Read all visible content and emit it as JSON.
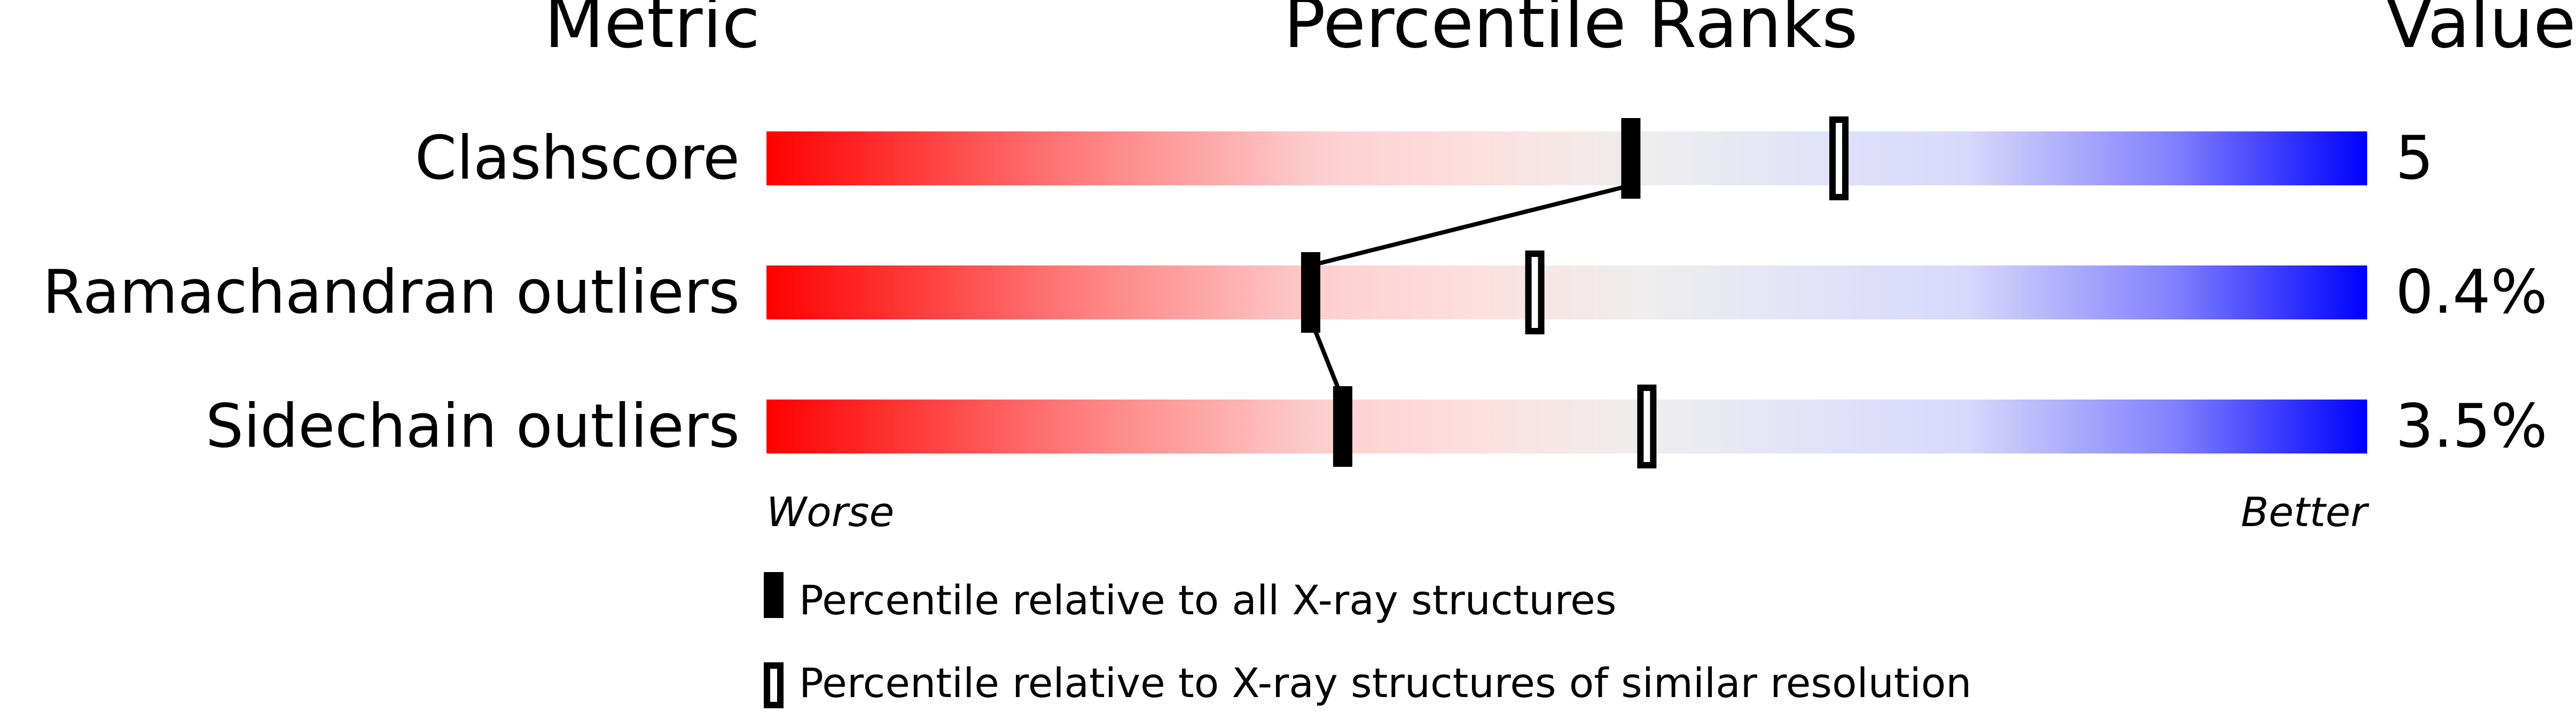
{
  "chart_data": {
    "type": "bar",
    "headers": {
      "metric": "Metric",
      "ranks": "Percentile Ranks",
      "value": "Value"
    },
    "xlim": [
      0,
      100
    ],
    "axis_labels": {
      "left": "Worse",
      "right": "Better"
    },
    "rows": [
      {
        "metric": "Clashscore",
        "value": "5",
        "percentile_all": 54,
        "percentile_similar": 67
      },
      {
        "metric": "Ramachandran outliers",
        "value": "0.4%",
        "percentile_all": 34,
        "percentile_similar": 48
      },
      {
        "metric": "Sidechain outliers",
        "value": "3.5%",
        "percentile_all": 36,
        "percentile_similar": 55
      }
    ],
    "legend": [
      {
        "marker": "filled",
        "label": "Percentile relative to all X-ray structures"
      },
      {
        "marker": "open",
        "label": "Percentile relative to X-ray structures of similar resolution"
      }
    ],
    "colors": {
      "worse": "#ff0000",
      "middle": "#eeeeee",
      "better": "#0000ff"
    }
  }
}
